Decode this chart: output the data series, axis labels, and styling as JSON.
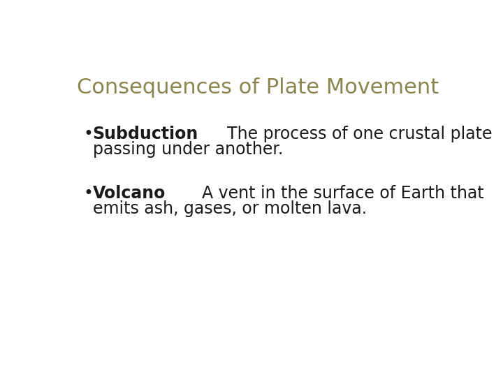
{
  "background_color": "#ffffff",
  "title": "Consequences of Plate Movement",
  "title_color": "#8B8550",
  "title_fontsize": 22,
  "title_fontweight": "normal",
  "bullet_color": "#1a1a1a",
  "bold_fontsize": 17,
  "regular_fontsize": 17,
  "bullet_symbol": "•",
  "bullet_items": [
    {
      "bold_text": "Subduction",
      "line1_after_bold": "  The process of one crustal plate",
      "line2": "passing under another."
    },
    {
      "bold_text": "Volcano",
      "line1_after_bold": "  A vent in the surface of Earth that",
      "line2": "emits ash, gases, or molten lava."
    }
  ]
}
